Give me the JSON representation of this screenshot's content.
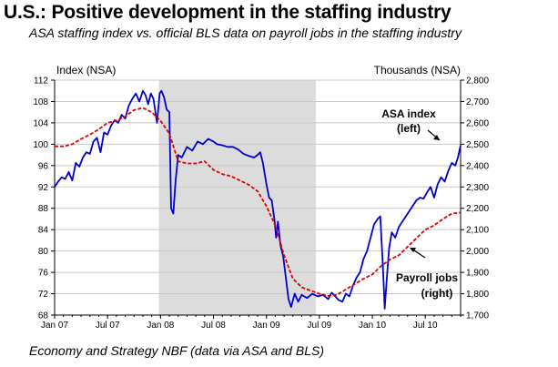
{
  "title": "U.S.: Positive development in the staffing industry",
  "subtitle": "ASA staffing index vs. official BLS data on payroll jobs in the staffing industry",
  "source": "Economy and Strategy NBF (data via ASA and BLS)",
  "chart_data": {
    "type": "line",
    "x_axis": {
      "unit": "months since Jan 07",
      "range": [
        0,
        46
      ],
      "tick_values": [
        0,
        6,
        12,
        18,
        24,
        30,
        36,
        42
      ],
      "tick_labels": [
        "Jan 07",
        "Jul 07",
        "Jan 08",
        "Jul 08",
        "Jan 09",
        "Jul 09",
        "Jan 10",
        "Jul 10"
      ]
    },
    "y_left": {
      "label": "Index (NSA)",
      "range": [
        68,
        112
      ],
      "ticks": [
        68,
        72,
        76,
        80,
        84,
        88,
        92,
        96,
        100,
        104,
        108,
        112
      ]
    },
    "y_right": {
      "label": "Thousands (NSA)",
      "range": [
        1700,
        2800
      ],
      "ticks": [
        "1,700",
        "1,800",
        "1,900",
        "2,000",
        "2,100",
        "2,200",
        "2,300",
        "2,400",
        "2,500",
        "2,600",
        "2,700",
        "2,800"
      ],
      "tick_values": [
        1700,
        1800,
        1900,
        2000,
        2100,
        2200,
        2300,
        2400,
        2500,
        2600,
        2700,
        2800
      ]
    },
    "recession_shading": {
      "x_start": 11.8,
      "x_end": 29.6,
      "color": "#dcdcdc"
    },
    "grid": true,
    "series": [
      {
        "name": "ASA index (left)",
        "axis": "left",
        "style": "solid",
        "color": "#0000cc",
        "points": [
          [
            0,
            92
          ],
          [
            0.4,
            93
          ],
          [
            0.8,
            93.8
          ],
          [
            1.2,
            93.5
          ],
          [
            1.6,
            94.8
          ],
          [
            2,
            93.2
          ],
          [
            2.4,
            96.5
          ],
          [
            2.8,
            95.8
          ],
          [
            3.2,
            97.5
          ],
          [
            3.6,
            98.5
          ],
          [
            4,
            98.2
          ],
          [
            4.4,
            100.5
          ],
          [
            4.8,
            101.2
          ],
          [
            5.2,
            98.5
          ],
          [
            5.6,
            102.2
          ],
          [
            6,
            101.8
          ],
          [
            6.4,
            103.5
          ],
          [
            6.8,
            104.5
          ],
          [
            7.2,
            104
          ],
          [
            7.6,
            105.5
          ],
          [
            8,
            104.8
          ],
          [
            8.4,
            107.2
          ],
          [
            8.8,
            108.5
          ],
          [
            9.2,
            109.5
          ],
          [
            9.6,
            108
          ],
          [
            10,
            110
          ],
          [
            10.3,
            109.2
          ],
          [
            10.6,
            107.5
          ],
          [
            10.9,
            109.5
          ],
          [
            11.2,
            108.5
          ],
          [
            11.6,
            104
          ],
          [
            11.9,
            109.5
          ],
          [
            12.1,
            110
          ],
          [
            12.4,
            108.8
          ],
          [
            12.7,
            106.5
          ],
          [
            13,
            106
          ],
          [
            13.2,
            88
          ],
          [
            13.45,
            87
          ],
          [
            13.7,
            93
          ],
          [
            14,
            98
          ],
          [
            14.4,
            97.5
          ],
          [
            15,
            99.5
          ],
          [
            15.6,
            98.8
          ],
          [
            16.2,
            100.5
          ],
          [
            16.8,
            100
          ],
          [
            17.4,
            101
          ],
          [
            18,
            100.5
          ],
          [
            18.4,
            100
          ],
          [
            19,
            99.8
          ],
          [
            19.6,
            99.5
          ],
          [
            20.2,
            99.5
          ],
          [
            20.8,
            99
          ],
          [
            21.4,
            98.2
          ],
          [
            22,
            97.8
          ],
          [
            22.6,
            97.5
          ],
          [
            23,
            98
          ],
          [
            23.3,
            98.5
          ],
          [
            23.6,
            96.5
          ],
          [
            24,
            92.5
          ],
          [
            24.3,
            90
          ],
          [
            24.6,
            89.5
          ],
          [
            24.9,
            86
          ],
          [
            25.1,
            82.5
          ],
          [
            25.3,
            85.5
          ],
          [
            25.6,
            81
          ],
          [
            25.9,
            79
          ],
          [
            26.2,
            75
          ],
          [
            26.5,
            71
          ],
          [
            26.8,
            69.5
          ],
          [
            27.2,
            72
          ],
          [
            27.6,
            70.5
          ],
          [
            28,
            71.8
          ],
          [
            28.6,
            71.2
          ],
          [
            29.2,
            72
          ],
          [
            29.8,
            71.5
          ],
          [
            30.4,
            71.8
          ],
          [
            31,
            71
          ],
          [
            31.4,
            72.2
          ],
          [
            31.8,
            71.5
          ],
          [
            32.2,
            70.8
          ],
          [
            32.6,
            70.5
          ],
          [
            33,
            72
          ],
          [
            33.4,
            71.5
          ],
          [
            33.8,
            73.5
          ],
          [
            34.2,
            75
          ],
          [
            34.6,
            76
          ],
          [
            35,
            78.5
          ],
          [
            35.4,
            80
          ],
          [
            35.8,
            82.5
          ],
          [
            36.2,
            85
          ],
          [
            36.6,
            86
          ],
          [
            36.9,
            86.5
          ],
          [
            37.2,
            77
          ],
          [
            37.4,
            69.2
          ],
          [
            37.6,
            74
          ],
          [
            37.9,
            80.5
          ],
          [
            38.2,
            83.5
          ],
          [
            38.6,
            82.5
          ],
          [
            39,
            84.5
          ],
          [
            39.4,
            85.5
          ],
          [
            39.8,
            86.5
          ],
          [
            40.2,
            87.5
          ],
          [
            40.6,
            88.5
          ],
          [
            41,
            89.5
          ],
          [
            41.4,
            90
          ],
          [
            41.8,
            89.8
          ],
          [
            42.2,
            91
          ],
          [
            42.6,
            92
          ],
          [
            43,
            90
          ],
          [
            43.4,
            92.5
          ],
          [
            43.8,
            93.8
          ],
          [
            44.2,
            93
          ],
          [
            44.6,
            95
          ],
          [
            45,
            96.5
          ],
          [
            45.4,
            96
          ],
          [
            45.7,
            97.5
          ],
          [
            46,
            99.8
          ]
        ]
      },
      {
        "name": "Payroll jobs (right)",
        "axis": "right",
        "style": "dashed",
        "color": "#dd0000",
        "points": [
          [
            0,
            2490
          ],
          [
            1,
            2490
          ],
          [
            2,
            2500
          ],
          [
            3,
            2525
          ],
          [
            4,
            2545
          ],
          [
            5,
            2570
          ],
          [
            6,
            2600
          ],
          [
            7,
            2610
          ],
          [
            8,
            2630
          ],
          [
            9,
            2660
          ],
          [
            10,
            2670
          ],
          [
            11,
            2650
          ],
          [
            12,
            2610
          ],
          [
            13,
            2550
          ],
          [
            14,
            2420
          ],
          [
            15,
            2410
          ],
          [
            16,
            2410
          ],
          [
            17,
            2420
          ],
          [
            18,
            2380
          ],
          [
            19,
            2360
          ],
          [
            20,
            2350
          ],
          [
            21,
            2330
          ],
          [
            22,
            2310
          ],
          [
            23,
            2280
          ],
          [
            24,
            2210
          ],
          [
            25,
            2120
          ],
          [
            26,
            1980
          ],
          [
            27,
            1870
          ],
          [
            28,
            1830
          ],
          [
            29,
            1815
          ],
          [
            30,
            1800
          ],
          [
            31,
            1790
          ],
          [
            32,
            1795
          ],
          [
            33,
            1820
          ],
          [
            34,
            1845
          ],
          [
            35,
            1870
          ],
          [
            36,
            1890
          ],
          [
            37,
            1930
          ],
          [
            38,
            1960
          ],
          [
            39,
            1980
          ],
          [
            40,
            2020
          ],
          [
            41,
            2060
          ],
          [
            42,
            2100
          ],
          [
            43,
            2120
          ],
          [
            44,
            2150
          ],
          [
            45,
            2175
          ],
          [
            46,
            2180
          ]
        ]
      }
    ],
    "annotations": [
      {
        "text_lines": [
          "ASA index",
          "(left)"
        ],
        "points_to_series": "ASA index (left)"
      },
      {
        "text_lines": [
          "Payroll jobs",
          "(right)"
        ],
        "points_to_series": "Payroll jobs (right)"
      }
    ]
  }
}
